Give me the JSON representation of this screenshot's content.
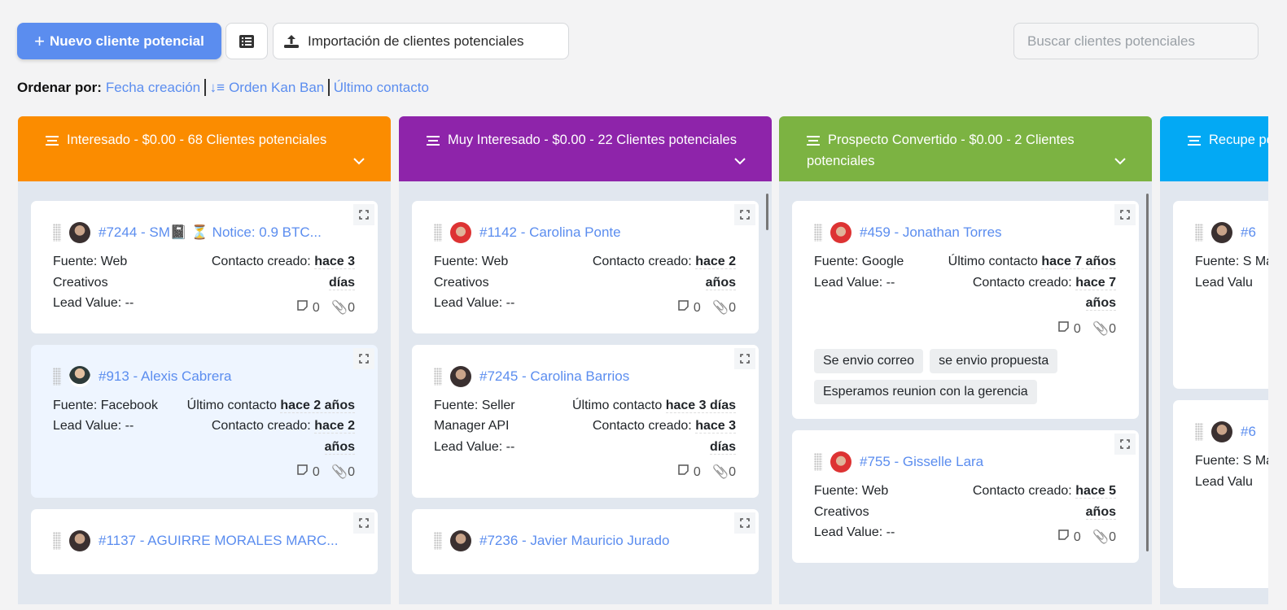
{
  "toolbar": {
    "new_lead": "Nuevo cliente potencial",
    "import": "Importación de clientes potenciales",
    "search_placeholder": "Buscar clientes potenciales"
  },
  "sort": {
    "label": "Ordenar por:",
    "options": [
      "Fecha creación",
      "Orden Kan Ban",
      "Último contacto"
    ]
  },
  "columns": [
    {
      "title": "Interesado - $0.00 - 68 Clientes potenciales",
      "color": "#fb8c00",
      "cards": [
        {
          "title": "#7244 - SM📓 ⏳ Notice: 0.9 BTC...",
          "avatar": "dark",
          "left": [
            "Fuente: Web Creativos",
            "Lead Value: --"
          ],
          "right": [
            {
              "label": "Contacto creado:",
              "value": "hace 3 días"
            }
          ],
          "notes": "0",
          "files": "0",
          "tags": []
        },
        {
          "title": "#913 - Alexis Cabrera",
          "avatar": "male",
          "highlight": true,
          "left": [
            "Fuente: Facebook",
            "Lead Value: --"
          ],
          "right": [
            {
              "label": "Último contacto",
              "value": "hace 2 años"
            },
            {
              "label": "Contacto creado:",
              "value": "hace 2 años"
            }
          ],
          "notes": "0",
          "files": "0",
          "tags": []
        },
        {
          "title": "#1137 - AGUIRRE MORALES MARC...",
          "avatar": "dark",
          "left": [],
          "right": [],
          "notes": "",
          "files": "",
          "tags": []
        }
      ]
    },
    {
      "title": "Muy Interesado - $0.00 - 22 Clientes potenciales",
      "color": "#8e24aa",
      "cards": [
        {
          "title": "#1142 - Carolina Ponte",
          "avatar": "red",
          "left": [
            "Fuente: Web Creativos",
            "Lead Value: --"
          ],
          "right": [
            {
              "label": "Contacto creado:",
              "value": "hace 2 años"
            }
          ],
          "notes": "0",
          "files": "0",
          "tags": []
        },
        {
          "title": "#7245 - Carolina Barrios",
          "avatar": "dark",
          "left": [
            "Fuente: Seller Manager API",
            "Lead Value: --"
          ],
          "right": [
            {
              "label": "Último contacto",
              "value": "hace 3 días"
            },
            {
              "label": "Contacto creado:",
              "value": "hace 3 días"
            }
          ],
          "notes": "0",
          "files": "0",
          "tags": []
        },
        {
          "title": "#7236 - Javier Mauricio Jurado",
          "avatar": "dark",
          "left": [],
          "right": [],
          "notes": "",
          "files": "",
          "tags": []
        }
      ]
    },
    {
      "title": "Prospecto Convertido - $0.00 - 2 Clientes potenciales",
      "color": "#7cb342",
      "cards": [
        {
          "title": "#459 - Jonathan Torres",
          "avatar": "red",
          "left": [
            "Fuente: Google",
            "Lead Value: --"
          ],
          "right": [
            {
              "label": "Último contacto",
              "value": "hace 7 años"
            },
            {
              "label": "Contacto creado:",
              "value": "hace 7 años"
            }
          ],
          "notes": "0",
          "files": "0",
          "tags": [
            "Se envio correo",
            "se envio propuesta",
            "Esperamos reunion con la gerencia"
          ]
        },
        {
          "title": "#755 - Gisselle Lara",
          "avatar": "red",
          "left": [
            "Fuente: Web Creativos",
            "Lead Value: --"
          ],
          "right": [
            {
              "label": "Contacto creado:",
              "value": "hace 5 años"
            }
          ],
          "notes": "0",
          "files": "0",
          "tags": []
        }
      ]
    },
    {
      "title": "Recupe potenciales",
      "color": "#03a9f4",
      "cards": [
        {
          "title": "#6",
          "avatar": "dark",
          "left": [
            "Fuente: S Manager",
            "Lead Valu"
          ],
          "right": [],
          "notes": "",
          "files": "",
          "tags": []
        },
        {
          "title": "#6",
          "avatar": "dark",
          "left": [
            "Fuente: S Manager",
            "Lead Valu"
          ],
          "right": [],
          "notes": "",
          "files": "",
          "tags": []
        }
      ]
    }
  ]
}
